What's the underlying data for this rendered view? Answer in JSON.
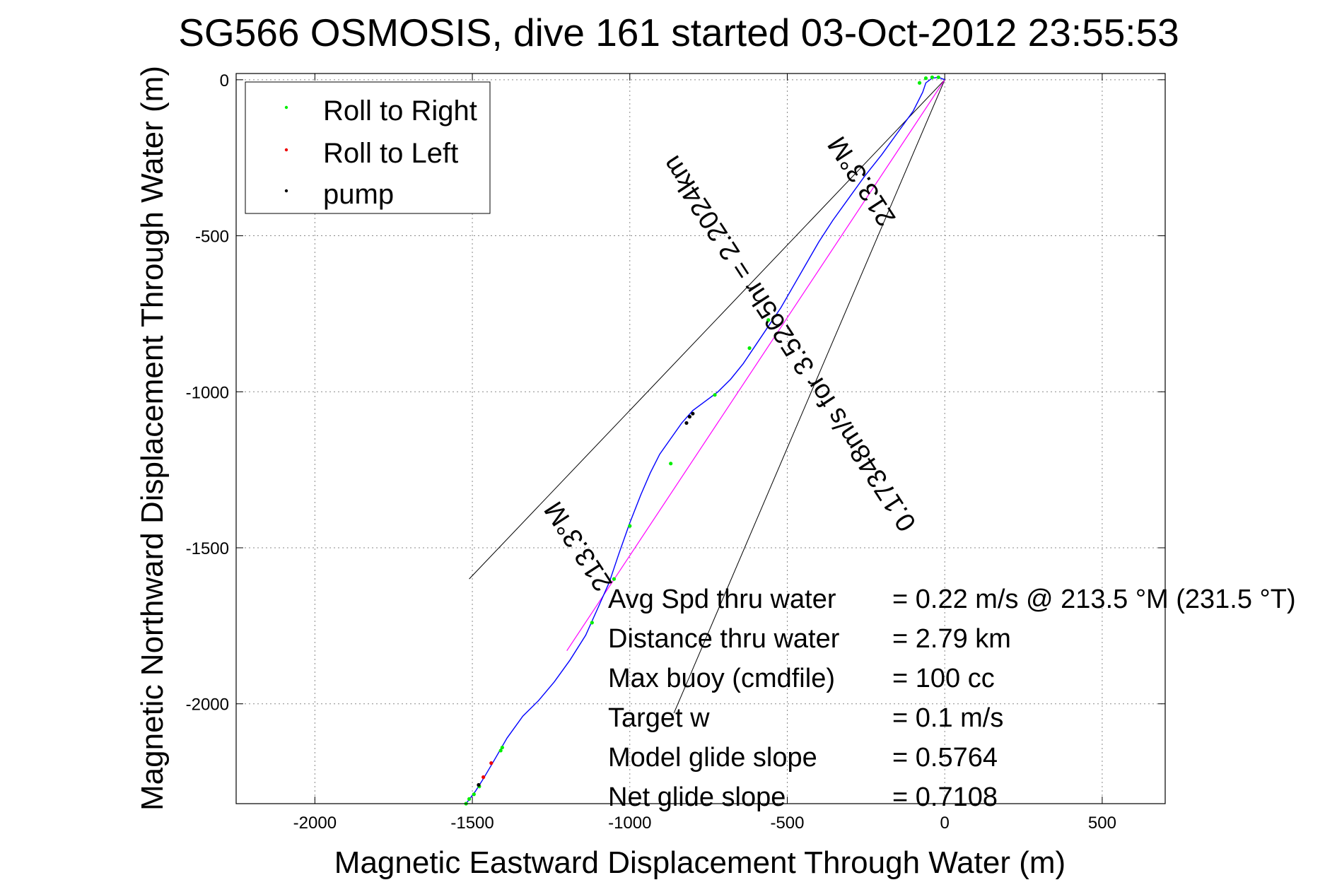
{
  "chart_data": {
    "type": "line",
    "title": "SG566 OSMOSIS, dive 161 started 03-Oct-2012 23:55:53",
    "xlabel": "Magnetic Eastward Displacement Through Water (m)",
    "ylabel": "Magnetic Northward Displacement Through Water (m)",
    "xlim": [
      -2250,
      700
    ],
    "ylim": [
      -2320,
      20
    ],
    "x_ticks": [
      -2000,
      -1500,
      -1000,
      -500,
      0,
      500
    ],
    "y_ticks": [
      0,
      -500,
      -1000,
      -1500,
      -2000
    ],
    "grid": true,
    "legend": {
      "placement": "top-left",
      "entries": [
        {
          "label": "Roll to Right",
          "color": "#00ee00"
        },
        {
          "label": "Roll to Left",
          "color": "#ee0000"
        },
        {
          "label": "pump",
          "color": "#000000"
        }
      ]
    },
    "track": {
      "color": "#0000ff",
      "points": [
        [
          -1520,
          -2320
        ],
        [
          -1490,
          -2280
        ],
        [
          -1465,
          -2240
        ],
        [
          -1430,
          -2180
        ],
        [
          -1390,
          -2110
        ],
        [
          -1340,
          -2040
        ],
        [
          -1290,
          -1990
        ],
        [
          -1240,
          -1930
        ],
        [
          -1190,
          -1860
        ],
        [
          -1140,
          -1780
        ],
        [
          -1100,
          -1690
        ],
        [
          -1065,
          -1610
        ],
        [
          -1035,
          -1520
        ],
        [
          -1000,
          -1420
        ],
        [
          -965,
          -1330
        ],
        [
          -935,
          -1260
        ],
        [
          -905,
          -1200
        ],
        [
          -870,
          -1150
        ],
        [
          -835,
          -1100
        ],
        [
          -800,
          -1060
        ],
        [
          -760,
          -1030
        ],
        [
          -720,
          -1000
        ],
        [
          -680,
          -960
        ],
        [
          -640,
          -910
        ],
        [
          -600,
          -850
        ],
        [
          -560,
          -790
        ],
        [
          -520,
          -730
        ],
        [
          -480,
          -660
        ],
        [
          -440,
          -590
        ],
        [
          -400,
          -520
        ],
        [
          -355,
          -450
        ],
        [
          -305,
          -380
        ],
        [
          -255,
          -310
        ],
        [
          -200,
          -240
        ],
        [
          -150,
          -170
        ],
        [
          -100,
          -100
        ],
        [
          -70,
          -40
        ],
        [
          -60,
          -10
        ],
        [
          -40,
          5
        ],
        [
          -20,
          8
        ],
        [
          0,
          0
        ]
      ]
    },
    "roll_right": [
      [
        -1520,
        -2320
      ],
      [
        -1510,
        -2305
      ],
      [
        -1495,
        -2290
      ],
      [
        -1478,
        -2265
      ],
      [
        -1410,
        -2150
      ],
      [
        -1405,
        -2140
      ],
      [
        -1120,
        -1740
      ],
      [
        -1050,
        -1600
      ],
      [
        -1000,
        -1430
      ],
      [
        -870,
        -1230
      ],
      [
        -730,
        -1010
      ],
      [
        -620,
        -860
      ],
      [
        -560,
        -770
      ],
      [
        -80,
        -10
      ],
      [
        -60,
        5
      ],
      [
        -40,
        8
      ],
      [
        -20,
        8
      ]
    ],
    "roll_left": [
      [
        -1465,
        -2235
      ],
      [
        -1440,
        -2190
      ]
    ],
    "pump": [
      [
        -1480,
        -2260
      ],
      [
        -820,
        -1100
      ],
      [
        -810,
        -1080
      ],
      [
        -800,
        -1070
      ]
    ],
    "direct_line": {
      "color": "#ff00ff",
      "from": [
        -1200,
        -1830
      ],
      "to": [
        0,
        0
      ]
    },
    "angle_lines": [
      {
        "from": [
          -1510,
          -1600
        ],
        "to": [
          0,
          0
        ]
      },
      {
        "from": [
          -860,
          -2030
        ],
        "to": [
          0,
          0
        ]
      }
    ],
    "annotations": [
      {
        "text": "0.17348m/s for 3.5265hr = 2.2024km",
        "at": [
          -470,
          -830
        ],
        "angle": 237
      },
      {
        "text": "213.3°M",
        "at": [
          -240,
          -310
        ],
        "angle": 237
      },
      {
        "text": "213.3°M",
        "at": [
          -1140,
          -1480
        ],
        "angle": 237
      }
    ],
    "stats": [
      {
        "label": "Avg Spd thru water",
        "value": "=  0.22 m/s @ 213.5 °M (231.5 °T)"
      },
      {
        "label": "Distance thru water",
        "value": "=  2.79 km"
      },
      {
        "label": "Max buoy (cmdfile)",
        "value": "= 100 cc"
      },
      {
        "label": "Target w",
        "value": "= 0.1 m/s"
      },
      {
        "label": "Model glide slope",
        "value": "= 0.5764"
      },
      {
        "label": "Net glide slope",
        "value": "= 0.7108"
      }
    ]
  }
}
